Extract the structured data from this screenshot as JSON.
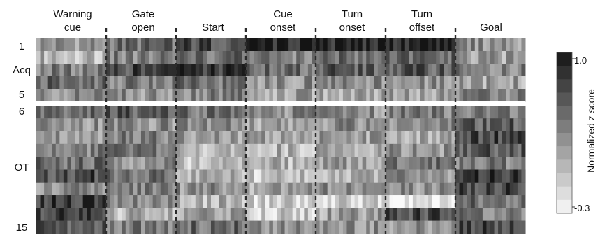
{
  "chart_data": {
    "type": "heatmap",
    "title": "",
    "columns": [
      {
        "line1": "Warning",
        "line2": "cue"
      },
      {
        "line1": "Gate",
        "line2": "open"
      },
      {
        "line1": "",
        "line2": "Start"
      },
      {
        "line1": "Cue",
        "line2": "onset"
      },
      {
        "line1": "Turn",
        "line2": "onset"
      },
      {
        "line1": "Turn",
        "line2": "offset"
      },
      {
        "line1": "",
        "line2": "Goal"
      }
    ],
    "row_labels": {
      "first_acq": "1",
      "acq": "Acq",
      "last_acq": "5",
      "first_ot": "6",
      "ot": "OT",
      "last_ot": "15"
    },
    "acq_sessions": 5,
    "ot_sessions": 10,
    "colorbar": {
      "max_label": "1.0",
      "min_label": "-0.3",
      "title": "Normalized z score",
      "range": [
        -0.3,
        1.0
      ],
      "steps": 12
    },
    "rows": [
      {
        "session": 1,
        "phase": "Acq",
        "values": [
          0.3,
          0.5,
          0.7,
          0.9,
          0.9,
          0.85,
          0.3
        ]
      },
      {
        "session": 2,
        "phase": "Acq",
        "values": [
          0.1,
          0.4,
          0.5,
          0.4,
          0.5,
          0.5,
          0.2
        ]
      },
      {
        "session": 3,
        "phase": "Acq",
        "values": [
          0.4,
          0.7,
          0.8,
          0.5,
          0.6,
          0.6,
          0.4
        ]
      },
      {
        "session": 4,
        "phase": "Acq",
        "values": [
          0.5,
          0.4,
          0.5,
          0.3,
          0.3,
          0.3,
          0.2
        ]
      },
      {
        "session": 5,
        "phase": "Acq",
        "values": [
          0.3,
          0.3,
          0.4,
          0.2,
          0.2,
          0.2,
          0.4
        ]
      },
      {
        "session": 6,
        "phase": "OT",
        "values": [
          0.5,
          0.6,
          0.5,
          0.3,
          0.3,
          0.4,
          0.4
        ]
      },
      {
        "session": 7,
        "phase": "OT",
        "values": [
          0.3,
          0.3,
          0.3,
          0.2,
          0.3,
          0.3,
          0.6
        ]
      },
      {
        "session": 8,
        "phase": "OT",
        "values": [
          0.3,
          0.4,
          0.2,
          0.2,
          0.2,
          0.2,
          0.7
        ]
      },
      {
        "session": 9,
        "phase": "OT",
        "values": [
          0.4,
          0.4,
          0.1,
          0.1,
          0.2,
          0.3,
          0.6
        ]
      },
      {
        "session": 10,
        "phase": "OT",
        "values": [
          0.5,
          0.3,
          0.0,
          0.1,
          0.2,
          0.5,
          0.4
        ]
      },
      {
        "session": 11,
        "phase": "OT",
        "values": [
          0.7,
          0.5,
          0.1,
          0.0,
          0.1,
          0.3,
          0.8
        ]
      },
      {
        "session": 12,
        "phase": "OT",
        "values": [
          0.3,
          0.4,
          0.3,
          0.2,
          0.3,
          0.3,
          0.7
        ]
      },
      {
        "session": 13,
        "phase": "OT",
        "values": [
          0.8,
          0.4,
          0.1,
          -0.1,
          0.0,
          -0.2,
          0.5
        ]
      },
      {
        "session": 14,
        "phase": "OT",
        "values": [
          0.7,
          0.1,
          0.2,
          0.0,
          0.2,
          0.7,
          0.4
        ]
      },
      {
        "session": 15,
        "phase": "OT",
        "values": [
          0.6,
          0.4,
          0.5,
          0.3,
          0.3,
          0.3,
          0.7
        ]
      }
    ]
  }
}
